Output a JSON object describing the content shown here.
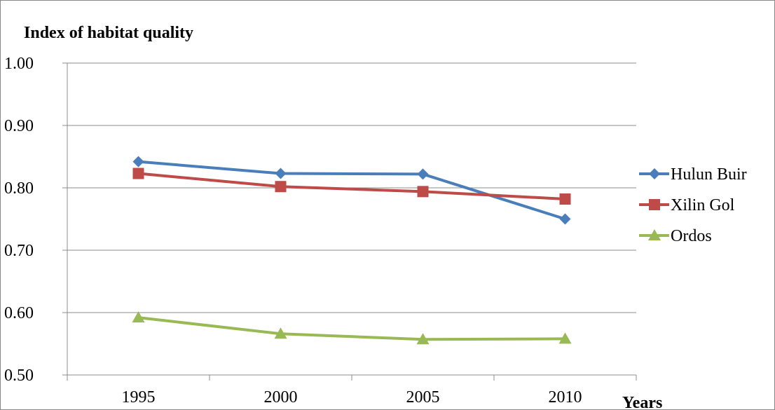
{
  "chart_data": {
    "type": "line",
    "title": "Index of habitat quality",
    "xlabel": "Years",
    "ylabel": "",
    "categories": [
      "1995",
      "2000",
      "2005",
      "2010"
    ],
    "ylim": [
      0.5,
      1.0
    ],
    "yticks": [
      "0.50",
      "0.60",
      "0.70",
      "0.80",
      "0.90",
      "1.00"
    ],
    "grid": true,
    "legend_position": "right",
    "series": [
      {
        "name": "Hulun Buir",
        "color": "#4a7ebb",
        "marker": "diamond",
        "values": [
          0.842,
          0.823,
          0.822,
          0.75
        ]
      },
      {
        "name": "Xilin Gol",
        "color": "#be4b48",
        "marker": "square",
        "values": [
          0.823,
          0.802,
          0.794,
          0.782
        ]
      },
      {
        "name": "Ordos",
        "color": "#98b954",
        "marker": "triangle",
        "values": [
          0.592,
          0.566,
          0.557,
          0.558
        ]
      }
    ]
  }
}
